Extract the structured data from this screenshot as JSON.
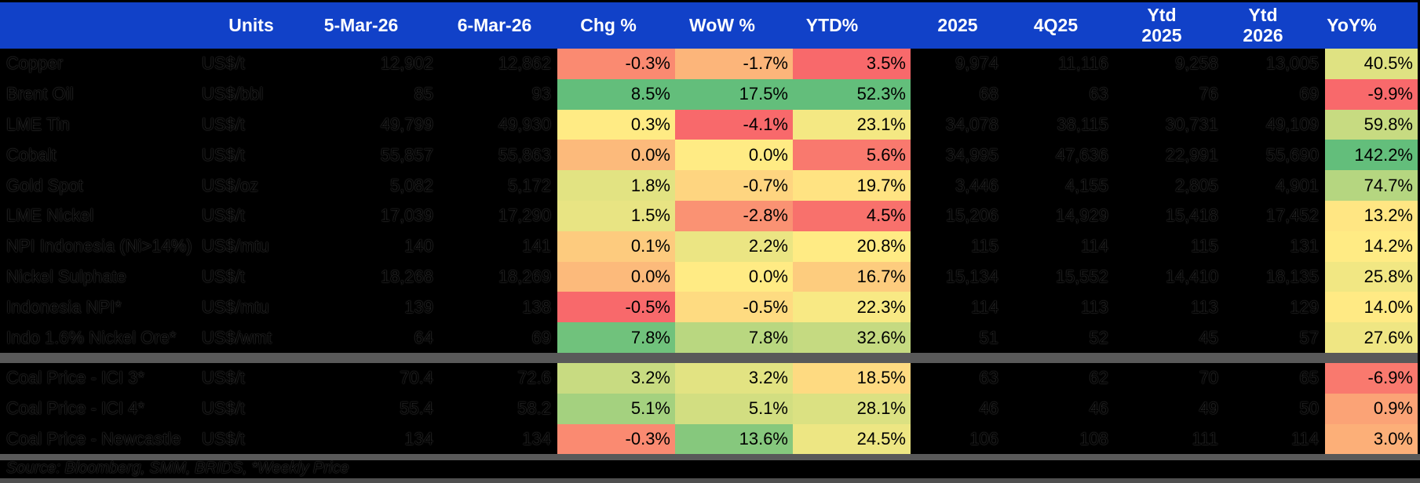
{
  "colors": {
    "background": "#000000",
    "header_bg": "#1141C8",
    "header_text": "#FFFFFF",
    "separator_bar": "#595959",
    "bottom_edge_bar": "#4F4F4F",
    "heat_min": "#F8696B",
    "heat_mid": "#FFEB84",
    "heat_max": "#63BE7B"
  },
  "source_note": "Source: Bloomberg, SMM, BRIDS, *Weekly Price",
  "chart_data": {
    "type": "table",
    "columns": [
      "",
      "Units",
      "5-Mar-26",
      "6-Mar-26",
      "Chg %",
      "WoW %",
      "YTD%",
      "2025",
      "4Q25",
      "Ytd 2025",
      "Ytd 2026",
      "YoY%"
    ],
    "rows": [
      [
        "Copper",
        "US$/t",
        "12,902",
        "12,862",
        "-0.3%",
        "-1.7%",
        "3.5%",
        "9,974",
        "11,116",
        "9,258",
        "13,005",
        "40.5%"
      ],
      [
        "Brent Oil",
        "US$/bbl",
        "85",
        "93",
        "8.5%",
        "17.5%",
        "52.3%",
        "68",
        "63",
        "76",
        "69",
        "-9.9%"
      ],
      [
        "LME Tin",
        "US$/t",
        "49,799",
        "49,930",
        "0.3%",
        "-4.1%",
        "23.1%",
        "34,078",
        "38,115",
        "30,731",
        "49,109",
        "59.8%"
      ],
      [
        "Cobalt",
        "US$/t",
        "55,857",
        "55,863",
        "0.0%",
        "0.0%",
        "5.6%",
        "34,995",
        "47,636",
        "22,991",
        "55,690",
        "142.2%"
      ],
      [
        "Gold Spot",
        "US$/oz",
        "5,082",
        "5,172",
        "1.8%",
        "-0.7%",
        "19.7%",
        "3,446",
        "4,155",
        "2,805",
        "4,901",
        "74.7%"
      ],
      [
        "LME Nickel",
        "US$/t",
        "17,039",
        "17,290",
        "1.5%",
        "-2.8%",
        "4.5%",
        "15,206",
        "14,929",
        "15,418",
        "17,452",
        "13.2%"
      ],
      [
        "NPI Indonesia (Ni>14%)",
        "US$/mtu",
        "140",
        "141",
        "0.1%",
        "2.2%",
        "20.8%",
        "115",
        "114",
        "115",
        "131",
        "14.2%"
      ],
      [
        "Nickel Sulphate",
        "US$/t",
        "18,268",
        "18,269",
        "0.0%",
        "0.0%",
        "16.7%",
        "15,134",
        "15,552",
        "14,410",
        "18,135",
        "25.8%"
      ],
      [
        "Indonesia NPI*",
        "US$/mtu",
        "139",
        "138",
        "-0.5%",
        "-0.5%",
        "22.3%",
        "114",
        "113",
        "113",
        "129",
        "14.0%"
      ],
      [
        "Indo 1.6% Nickel Ore*",
        "US$/wmt",
        "64",
        "69",
        "7.8%",
        "7.8%",
        "32.6%",
        "51",
        "52",
        "45",
        "57",
        "27.6%"
      ],
      [
        "Coal Price - ICI 3*",
        "US$/t",
        "70.4",
        "72.6",
        "3.2%",
        "3.2%",
        "18.5%",
        "63",
        "62",
        "70",
        "65",
        "-6.9%"
      ],
      [
        "Coal Price - ICI 4*",
        "US$/t",
        "55.4",
        "58.2",
        "5.1%",
        "5.1%",
        "28.1%",
        "46",
        "46",
        "49",
        "50",
        "0.9%"
      ],
      [
        "Coal Price - Newcastle",
        "US$/t",
        "134",
        "134",
        "-0.3%",
        "13.6%",
        "24.5%",
        "106",
        "108",
        "111",
        "114",
        "3.0%"
      ]
    ],
    "group_break_after_row": 10,
    "heatmap_columns": [
      "Chg %",
      "WoW %",
      "YTD%",
      "YoY%"
    ],
    "heatmap_scale": {
      "min": "#F8696B",
      "mid": "#FFEB84",
      "max": "#63BE7B",
      "anchor": "min-median-max"
    },
    "legend_position": "none",
    "grid": false,
    "source": "Source: Bloomberg, SMM, BRIDS, *Weekly Price"
  }
}
